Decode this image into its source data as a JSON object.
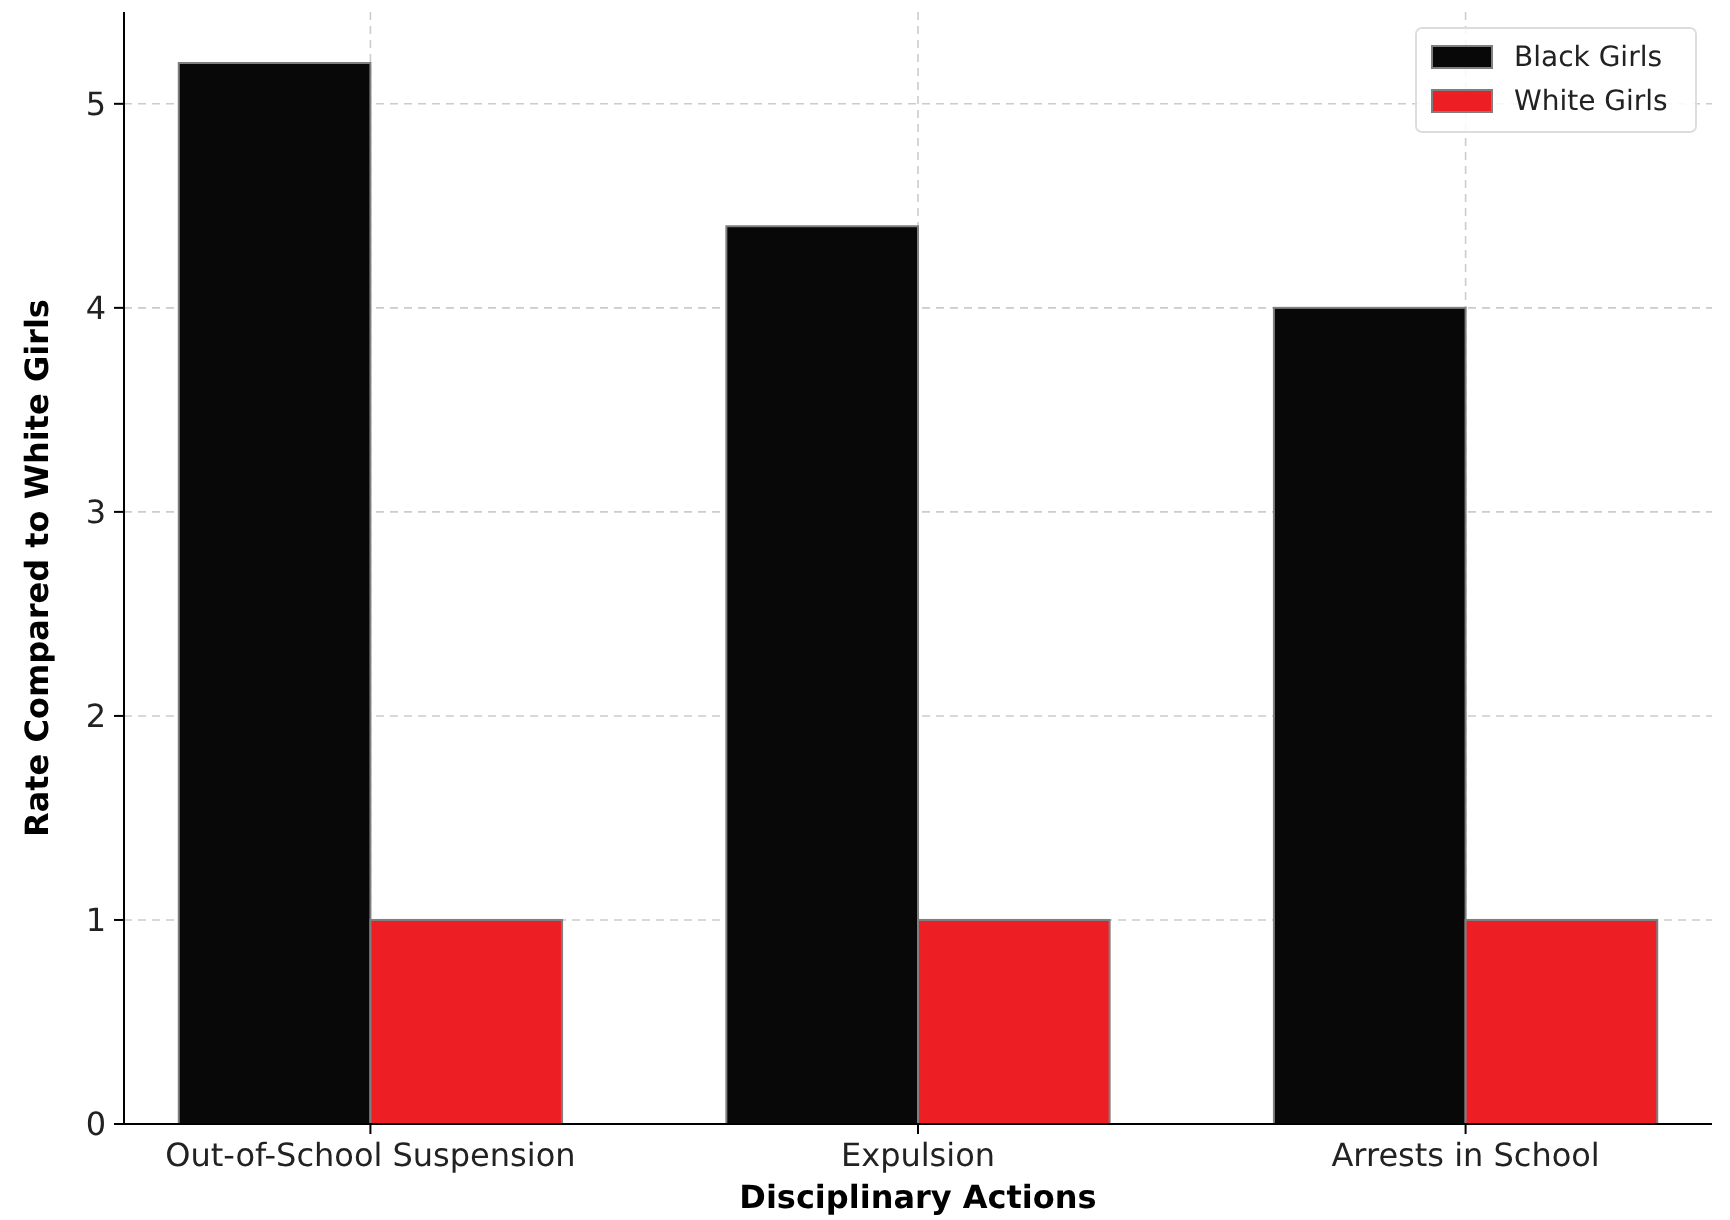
{
  "chart_data": {
    "type": "bar",
    "xlabel": "Disciplinary Actions",
    "ylabel": "Rate Compared to White Girls",
    "categories": [
      "Out-of-School Suspension",
      "Expulsion",
      "Arrests in School"
    ],
    "series": [
      {
        "name": "Black Girls",
        "color": "#080808",
        "values": [
          5.2,
          4.4,
          4.0
        ]
      },
      {
        "name": "White Girls",
        "color": "#ee1f24",
        "values": [
          1,
          1,
          1
        ]
      }
    ],
    "ylim": [
      0,
      5.45
    ],
    "yticks": [
      0,
      1,
      2,
      3,
      4,
      5
    ],
    "grid": true,
    "legend": "top right"
  }
}
